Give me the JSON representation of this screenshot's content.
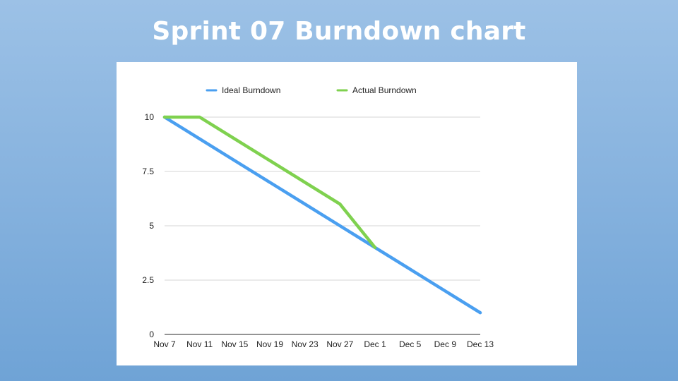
{
  "slide": {
    "title": "Sprint 07 Burndown chart"
  },
  "chart_data": {
    "type": "line",
    "x": [
      "Nov 7",
      "Nov 11",
      "Nov 15",
      "Nov 19",
      "Nov 23",
      "Nov 27",
      "Dec 1",
      "Dec 5",
      "Dec 9",
      "Dec 13"
    ],
    "series": [
      {
        "name": "Ideal Burndown",
        "color": "#4a9ff0",
        "values": [
          10,
          9,
          8,
          7,
          6,
          5,
          4,
          3,
          2,
          1
        ]
      },
      {
        "name": "Actual Burndown",
        "color": "#7fd14f",
        "values": [
          10,
          10,
          9,
          8,
          7,
          6,
          4,
          null,
          null,
          null
        ]
      }
    ],
    "yticks": [
      "0",
      "2.5",
      "5",
      "7.5",
      "10"
    ],
    "ylim": [
      0,
      10
    ],
    "grid": true,
    "legend_position": "top",
    "title": "",
    "xlabel": "",
    "ylabel": ""
  }
}
